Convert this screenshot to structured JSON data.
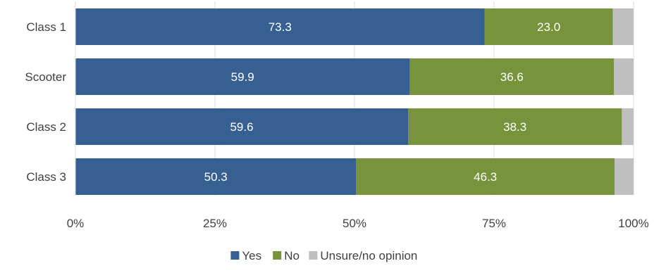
{
  "chart_data": {
    "type": "bar",
    "orientation": "horizontal",
    "stacked": true,
    "percent_axis": true,
    "title": "",
    "xlabel": "",
    "ylabel": "",
    "categories": [
      "Class 1",
      "Scooter",
      "Class 2",
      "Class 3"
    ],
    "series": [
      {
        "name": "Yes",
        "values": [
          73.3,
          59.9,
          59.6,
          50.3
        ],
        "color": "#376092",
        "show_labels": true
      },
      {
        "name": "No",
        "values": [
          23.0,
          36.6,
          38.3,
          46.3
        ],
        "color": "#77933c",
        "show_labels": true
      },
      {
        "name": "Unsure/no opinion",
        "values": [
          3.7,
          3.5,
          2.1,
          3.4
        ],
        "color": "#bfbfbf",
        "show_labels": false
      }
    ],
    "xlim": [
      0,
      100
    ],
    "xticks": [
      0,
      25,
      50,
      75,
      100
    ],
    "xtick_labels": [
      "0%",
      "25%",
      "50%",
      "75%",
      "100%"
    ],
    "grid": "vertical",
    "grid_color": "#d9d9d9",
    "legend_position": "bottom"
  }
}
